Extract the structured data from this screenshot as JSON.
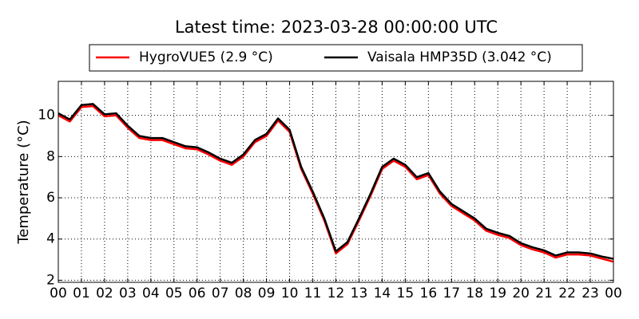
{
  "chart_data": {
    "type": "line",
    "title": "Latest time: 2023-03-28 00:00:00 UTC",
    "y_label": "Temperature (°C)",
    "x": [
      0,
      0.5,
      1,
      1.5,
      2,
      2.5,
      3,
      3.5,
      4,
      4.5,
      5,
      5.5,
      6,
      6.5,
      7,
      7.5,
      8,
      8.5,
      9,
      9.5,
      10,
      10.5,
      11,
      11.5,
      12,
      12.5,
      13,
      13.5,
      14,
      14.5,
      15,
      15.5,
      16,
      16.5,
      17,
      17.5,
      18,
      18.5,
      19,
      19.5,
      20,
      20.5,
      21,
      21.5,
      22,
      22.5,
      23,
      23.5,
      24
    ],
    "series": [
      {
        "name": "HygroVUE5 (2.9 °C)",
        "color": "#ff0000",
        "values": [
          10.0,
          9.7,
          10.4,
          10.45,
          9.95,
          10.0,
          9.4,
          8.9,
          8.8,
          8.8,
          8.6,
          8.4,
          8.35,
          8.1,
          7.8,
          7.6,
          8.0,
          8.7,
          9.0,
          9.75,
          9.2,
          7.4,
          6.2,
          4.9,
          3.3,
          3.75,
          4.9,
          6.1,
          7.4,
          7.8,
          7.5,
          6.9,
          7.1,
          6.2,
          5.6,
          5.25,
          4.9,
          4.4,
          4.2,
          4.05,
          3.7,
          3.5,
          3.35,
          3.1,
          3.25,
          3.25,
          3.2,
          3.05,
          2.9
        ]
      },
      {
        "name": "Vaisala HMP35D (3.042 °C)",
        "color": "#000000",
        "values": [
          10.1,
          9.8,
          10.5,
          10.55,
          10.05,
          10.1,
          9.5,
          9.0,
          8.9,
          8.9,
          8.7,
          8.5,
          8.45,
          8.2,
          7.9,
          7.7,
          8.1,
          8.8,
          9.1,
          9.85,
          9.3,
          7.5,
          6.3,
          5.0,
          3.4,
          3.85,
          5.0,
          6.2,
          7.5,
          7.9,
          7.6,
          7.0,
          7.2,
          6.3,
          5.7,
          5.35,
          5.0,
          4.5,
          4.3,
          4.15,
          3.8,
          3.6,
          3.45,
          3.2,
          3.35,
          3.35,
          3.3,
          3.15,
          3.04
        ]
      }
    ],
    "xlim": [
      0,
      24
    ],
    "xticks": [
      {
        "value": 0,
        "label": "00"
      },
      {
        "value": 1,
        "label": "01"
      },
      {
        "value": 2,
        "label": "02"
      },
      {
        "value": 3,
        "label": "03"
      },
      {
        "value": 4,
        "label": "04"
      },
      {
        "value": 5,
        "label": "05"
      },
      {
        "value": 6,
        "label": "06"
      },
      {
        "value": 7,
        "label": "07"
      },
      {
        "value": 8,
        "label": "08"
      },
      {
        "value": 9,
        "label": "09"
      },
      {
        "value": 10,
        "label": "10"
      },
      {
        "value": 11,
        "label": "11"
      },
      {
        "value": 12,
        "label": "12"
      },
      {
        "value": 13,
        "label": "13"
      },
      {
        "value": 14,
        "label": "14"
      },
      {
        "value": 15,
        "label": "15"
      },
      {
        "value": 16,
        "label": "16"
      },
      {
        "value": 17,
        "label": "17"
      },
      {
        "value": 18,
        "label": "18"
      },
      {
        "value": 19,
        "label": "19"
      },
      {
        "value": 20,
        "label": "20"
      },
      {
        "value": 21,
        "label": "21"
      },
      {
        "value": 22,
        "label": "22"
      },
      {
        "value": 23,
        "label": "23"
      },
      {
        "value": 24,
        "label": "00"
      }
    ],
    "ylim": [
      1.9,
      11.65
    ],
    "yticks": [
      2,
      4,
      6,
      8,
      10
    ],
    "grid": true,
    "legend": "top"
  }
}
